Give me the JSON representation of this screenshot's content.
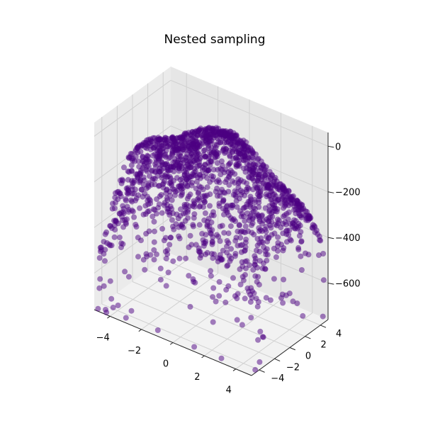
{
  "chart_data": {
    "type": "scatter",
    "projection": "3d",
    "title": "Nested sampling",
    "xlabel": "",
    "ylabel": "",
    "zlabel": "",
    "xlim": [
      -5,
      5
    ],
    "ylim": [
      -5,
      5
    ],
    "zlim": [
      -760,
      60
    ],
    "x_ticks": [
      -4,
      -2,
      0,
      2,
      4
    ],
    "y_ticks": [
      -4,
      -2,
      0,
      2,
      4
    ],
    "z_ticks": [
      0,
      -200,
      -400,
      -600
    ],
    "tick_labels": {
      "x": [
        "−4",
        "−2",
        "0",
        "2",
        "4"
      ],
      "y": [
        "−4",
        "−2",
        "0",
        "2",
        "4"
      ],
      "z": [
        "0",
        "−200",
        "−400",
        "−600"
      ]
    },
    "grid": true,
    "marker_color": "#4b0082",
    "marker_alpha": 0.5,
    "samples": 1600,
    "surface": "z = -(x^2 + y^2)*12 + 60*sin(x)*cos(y) − offset (dense near the maximum, sparse below)"
  }
}
